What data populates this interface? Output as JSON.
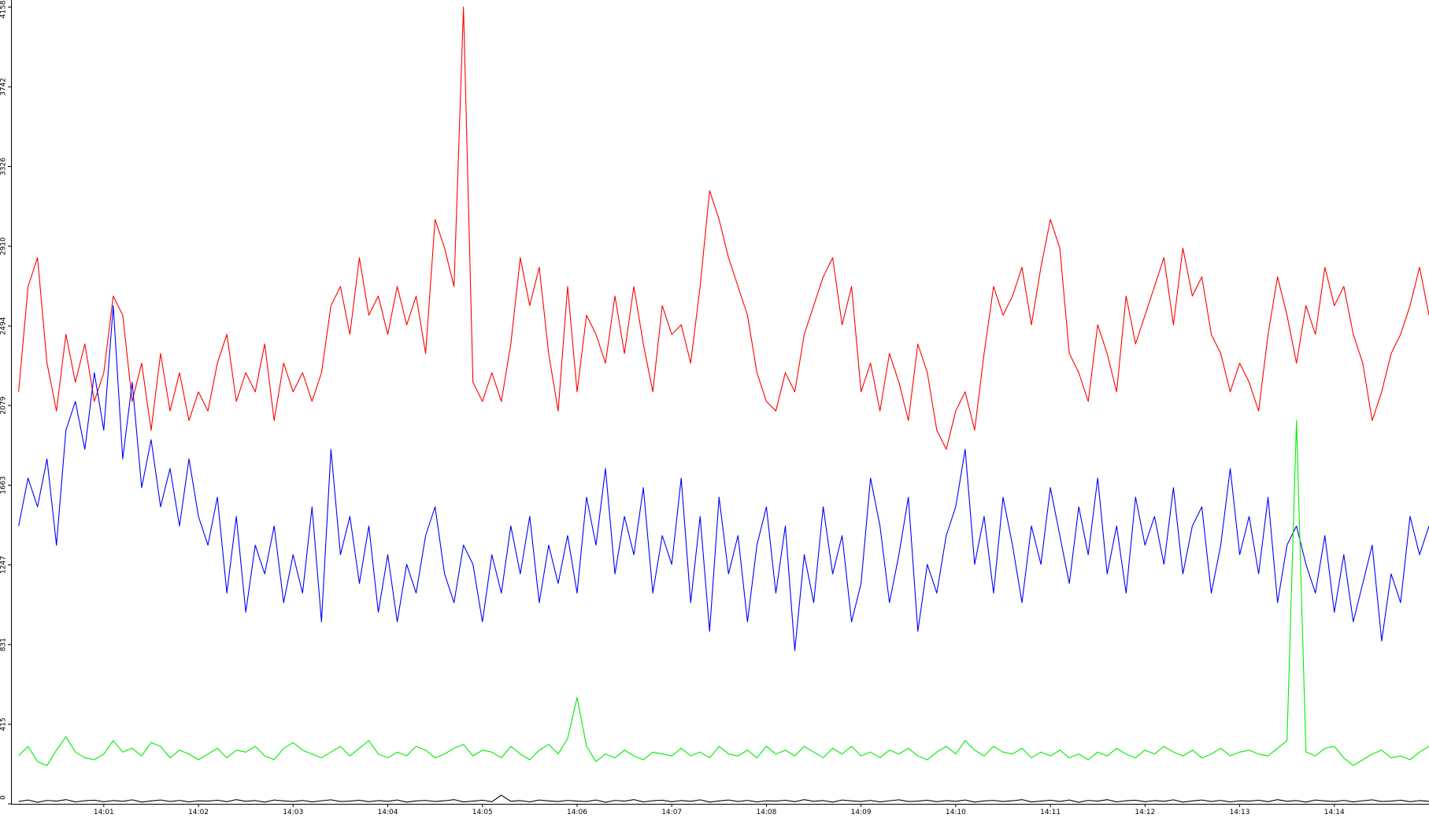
{
  "chart_data": {
    "type": "line",
    "x": [
      0.1,
      0.2,
      0.3,
      0.4,
      0.5,
      0.6,
      0.7,
      0.8,
      0.9,
      1.0,
      1.1,
      1.2,
      1.3,
      1.4,
      1.5,
      1.6,
      1.7,
      1.8,
      1.9,
      2.0,
      2.1,
      2.2,
      2.3,
      2.4,
      2.5,
      2.6,
      2.7,
      2.8,
      2.9,
      3.0,
      3.1,
      3.2,
      3.3,
      3.4,
      3.5,
      3.6,
      3.7,
      3.8,
      3.9,
      4.0,
      4.1,
      4.2,
      4.3,
      4.4,
      4.5,
      4.6,
      4.7,
      4.8,
      4.9,
      5.0,
      5.1,
      5.2,
      5.3,
      5.4,
      5.5,
      5.6,
      5.7,
      5.8,
      5.9,
      6.0,
      6.1,
      6.2,
      6.3,
      6.4,
      6.5,
      6.6,
      6.7,
      6.8,
      6.9,
      7.0,
      7.1,
      7.2,
      7.3,
      7.4,
      7.5,
      7.6,
      7.7,
      7.8,
      7.9,
      8.0,
      8.1,
      8.2,
      8.3,
      8.4,
      8.5,
      8.6,
      8.7,
      8.8,
      8.9,
      9.0,
      9.1,
      9.2,
      9.3,
      9.4,
      9.5,
      9.6,
      9.7,
      9.8,
      9.9,
      10.0,
      10.1,
      10.2,
      10.3,
      10.4,
      10.5,
      10.6,
      10.7,
      10.8,
      10.9,
      11.0,
      11.1,
      11.2,
      11.3,
      11.4,
      11.5,
      11.6,
      11.7,
      11.8,
      11.9,
      12.0,
      12.1,
      12.2,
      12.3,
      12.4,
      12.5,
      12.6,
      12.7,
      12.8,
      12.9,
      13.0,
      13.1,
      13.2,
      13.3,
      13.4,
      13.5,
      13.6,
      13.7,
      13.8,
      13.9,
      14.0,
      14.1,
      14.2,
      14.3,
      14.4,
      14.5,
      14.6,
      14.7,
      14.8,
      14.9,
      15.0
    ],
    "series": [
      {
        "color": "#ff0000",
        "values": [
          2150,
          2700,
          2850,
          2300,
          2050,
          2450,
          2200,
          2400,
          2100,
          2250,
          2650,
          2550,
          2100,
          2300,
          1950,
          2350,
          2050,
          2250,
          2000,
          2150,
          2050,
          2300,
          2450,
          2100,
          2250,
          2150,
          2400,
          2000,
          2300,
          2150,
          2250,
          2100,
          2250,
          2600,
          2700,
          2450,
          2850,
          2550,
          2650,
          2450,
          2700,
          2500,
          2650,
          2350,
          3050,
          2900,
          2700,
          4158,
          2200,
          2100,
          2250,
          2100,
          2400,
          2850,
          2600,
          2800,
          2350,
          2050,
          2700,
          2150,
          2550,
          2450,
          2300,
          2650,
          2350,
          2700,
          2400,
          2150,
          2600,
          2450,
          2500,
          2300,
          2700,
          3200,
          3050,
          2850,
          2700,
          2550,
          2250,
          2100,
          2050,
          2250,
          2150,
          2450,
          2600,
          2750,
          2850,
          2500,
          2700,
          2150,
          2300,
          2050,
          2350,
          2200,
          2000,
          2400,
          2250,
          1950,
          1850,
          2050,
          2150,
          1950,
          2350,
          2700,
          2550,
          2650,
          2800,
          2500,
          2800,
          3050,
          2900,
          2350,
          2250,
          2100,
          2500,
          2350,
          2150,
          2650,
          2400,
          2550,
          2700,
          2850,
          2500,
          2900,
          2650,
          2750,
          2450,
          2350,
          2150,
          2300,
          2200,
          2050,
          2450,
          2750,
          2550,
          2300,
          2600,
          2450,
          2800,
          2600,
          2700,
          2450,
          2300,
          2000,
          2150,
          2350,
          2450,
          2600,
          2800,
          2550
        ]
      },
      {
        "color": "#0000ff",
        "values": [
          1450,
          1700,
          1550,
          1800,
          1350,
          1950,
          2100,
          1850,
          2250,
          1950,
          2600,
          1800,
          2200,
          1650,
          1900,
          1550,
          1750,
          1450,
          1800,
          1500,
          1350,
          1600,
          1100,
          1500,
          1000,
          1350,
          1200,
          1450,
          1050,
          1300,
          1100,
          1550,
          950,
          1850,
          1300,
          1500,
          1150,
          1450,
          1000,
          1300,
          950,
          1250,
          1100,
          1400,
          1550,
          1200,
          1050,
          1350,
          1250,
          950,
          1300,
          1100,
          1450,
          1200,
          1500,
          1050,
          1350,
          1150,
          1400,
          1100,
          1600,
          1350,
          1750,
          1200,
          1500,
          1300,
          1650,
          1100,
          1400,
          1250,
          1700,
          1050,
          1500,
          900,
          1600,
          1200,
          1400,
          950,
          1350,
          1550,
          1100,
          1450,
          800,
          1300,
          1050,
          1550,
          1200,
          1400,
          950,
          1150,
          1700,
          1450,
          1050,
          1300,
          1600,
          900,
          1250,
          1100,
          1400,
          1550,
          1850,
          1250,
          1500,
          1100,
          1600,
          1350,
          1050,
          1450,
          1250,
          1650,
          1400,
          1150,
          1550,
          1300,
          1700,
          1200,
          1450,
          1100,
          1600,
          1350,
          1500,
          1250,
          1650,
          1200,
          1450,
          1550,
          1100,
          1350,
          1750,
          1300,
          1500,
          1200,
          1600,
          1050,
          1350,
          1450,
          1250,
          1100,
          1400,
          1000,
          1300,
          950,
          1150,
          1350,
          850,
          1200,
          1050,
          1500,
          1300,
          1450
        ]
      },
      {
        "color": "#00ee00",
        "values": [
          250,
          300,
          220,
          200,
          280,
          350,
          270,
          240,
          230,
          260,
          330,
          270,
          290,
          250,
          320,
          300,
          240,
          280,
          260,
          230,
          260,
          290,
          240,
          280,
          270,
          300,
          250,
          230,
          290,
          320,
          280,
          260,
          240,
          270,
          300,
          250,
          290,
          330,
          260,
          240,
          270,
          250,
          300,
          280,
          240,
          260,
          290,
          310,
          250,
          280,
          270,
          240,
          300,
          260,
          230,
          280,
          310,
          260,
          340,
          555,
          300,
          220,
          260,
          240,
          280,
          250,
          230,
          270,
          260,
          250,
          290,
          250,
          270,
          240,
          300,
          260,
          250,
          280,
          240,
          300,
          260,
          280,
          250,
          300,
          270,
          240,
          290,
          260,
          300,
          250,
          270,
          240,
          280,
          260,
          290,
          250,
          230,
          270,
          300,
          260,
          330,
          280,
          250,
          300,
          270,
          260,
          290,
          240,
          270,
          250,
          280,
          240,
          260,
          230,
          270,
          250,
          290,
          260,
          240,
          280,
          260,
          300,
          270,
          250,
          280,
          240,
          260,
          290,
          250,
          270,
          280,
          260,
          250,
          290,
          330,
          2000,
          270,
          250,
          290,
          300,
          240,
          200,
          230,
          260,
          280,
          240,
          250,
          230,
          270,
          300
        ]
      },
      {
        "color": "#000000",
        "values": [
          12,
          20,
          8,
          18,
          14,
          22,
          10,
          16,
          19,
          11,
          17,
          13,
          21,
          9,
          15,
          20,
          12,
          18,
          10,
          16,
          14,
          19,
          11,
          22,
          13,
          17,
          9,
          20,
          15,
          12,
          18,
          10,
          16,
          21,
          12,
          14,
          19,
          11,
          17,
          13,
          20,
          9,
          15,
          18,
          12,
          16,
          22,
          10,
          14,
          19,
          11,
          45,
          13,
          17,
          10,
          20,
          15,
          12,
          18,
          14,
          12,
          20,
          8,
          18,
          14,
          22,
          10,
          16,
          19,
          11,
          17,
          13,
          21,
          9,
          15,
          20,
          12,
          18,
          10,
          16,
          14,
          19,
          11,
          22,
          13,
          17,
          9,
          20,
          15,
          12,
          18,
          10,
          16,
          21,
          12,
          14,
          19,
          11,
          17,
          13,
          20,
          9,
          15,
          18,
          12,
          16,
          22,
          10,
          14,
          19,
          12,
          20,
          8,
          18,
          14,
          22,
          10,
          16,
          19,
          11,
          17,
          13,
          21,
          9,
          15,
          20,
          12,
          18,
          10,
          16,
          14,
          19,
          11,
          22,
          13,
          17,
          9,
          20,
          15,
          12,
          18,
          10,
          16,
          21,
          12,
          14,
          19,
          11,
          17,
          13
        ]
      }
    ],
    "xlim": [
      0.02,
      15
    ],
    "xticks": [
      {
        "value": 1,
        "label": "14:01"
      },
      {
        "value": 2,
        "label": "14:02"
      },
      {
        "value": 3,
        "label": "14:03"
      },
      {
        "value": 4,
        "label": "14:04"
      },
      {
        "value": 5,
        "label": "14:05"
      },
      {
        "value": 6,
        "label": "14:06"
      },
      {
        "value": 7,
        "label": "14:07"
      },
      {
        "value": 8,
        "label": "14:08"
      },
      {
        "value": 9,
        "label": "14:09"
      },
      {
        "value": 10,
        "label": "14:10"
      },
      {
        "value": 11,
        "label": "14:11"
      },
      {
        "value": 12,
        "label": "14:12"
      },
      {
        "value": 13,
        "label": "14:13"
      },
      {
        "value": 14,
        "label": "14:14"
      }
    ],
    "ylim": [
      0,
      4158
    ],
    "yticks": [
      0,
      415,
      831,
      1247,
      1663,
      2079,
      2494,
      2910,
      3326,
      3742,
      4158
    ],
    "grid": false
  }
}
